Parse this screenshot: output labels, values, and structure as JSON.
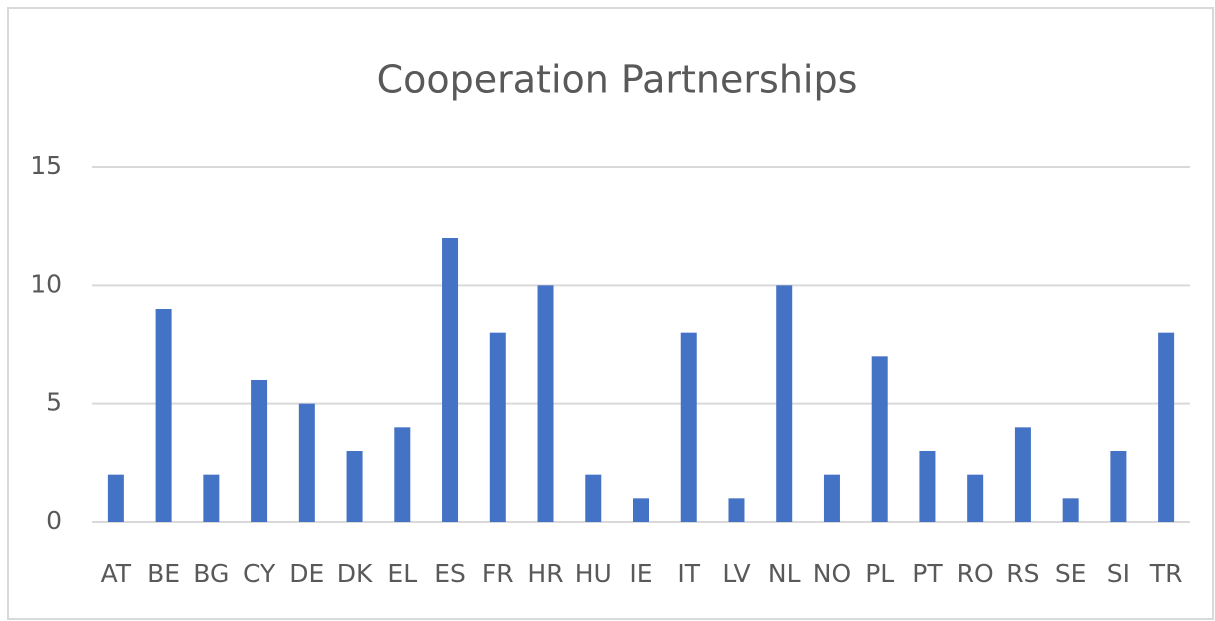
{
  "chart_data": {
    "type": "bar",
    "title": "Cooperation Partnerships",
    "categories": [
      "AT",
      "BE",
      "BG",
      "CY",
      "DE",
      "DK",
      "EL",
      "ES",
      "FR",
      "HR",
      "HU",
      "IE",
      "IT",
      "LV",
      "NL",
      "NO",
      "PL",
      "PT",
      "RO",
      "RS",
      "SE",
      "SI",
      "TR"
    ],
    "values": [
      2,
      9,
      2,
      6,
      5,
      3,
      4,
      12,
      8,
      10,
      2,
      1,
      8,
      1,
      10,
      2,
      7,
      3,
      2,
      4,
      1,
      3,
      8
    ],
    "color": "#4472c4",
    "ylim": [
      0,
      15
    ],
    "yticks": [
      0,
      5,
      10,
      15
    ],
    "grid": true
  }
}
